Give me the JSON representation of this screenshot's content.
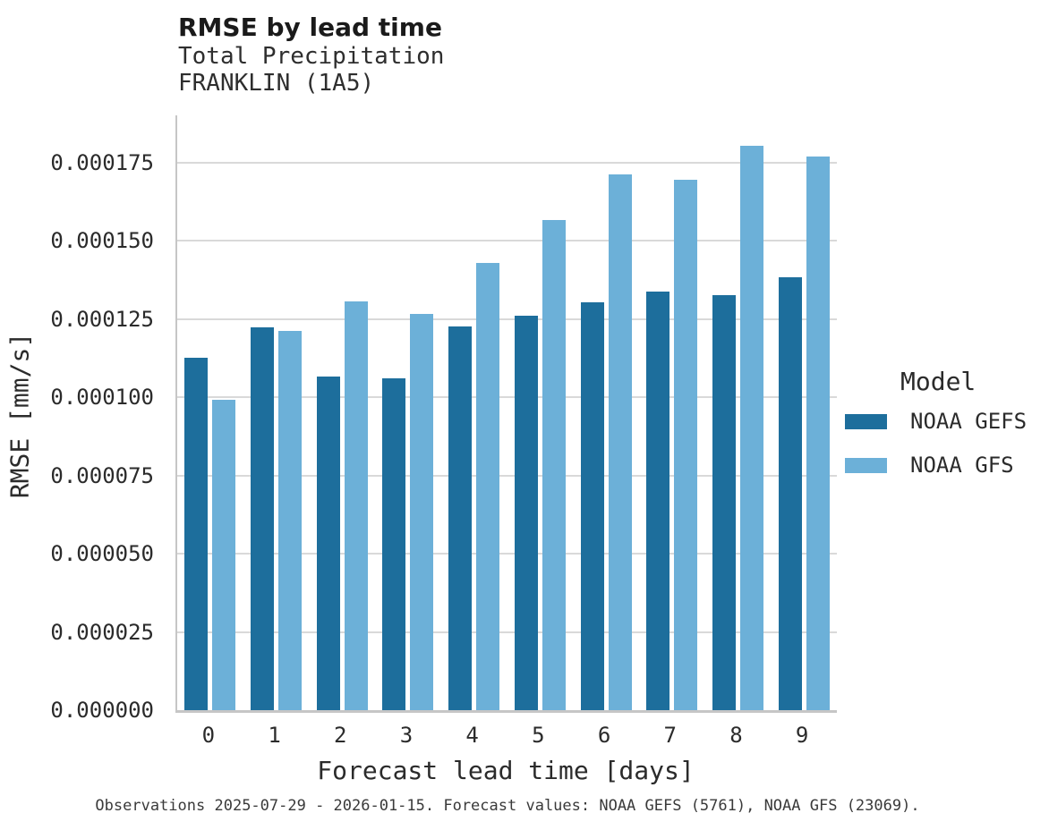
{
  "header": {
    "title": "RMSE by lead time",
    "subtitle_line1": "Total Precipitation",
    "subtitle_line2": "FRANKLIN (1A5)"
  },
  "caption": "Observations 2025-07-29 - 2026-01-15. Forecast values: NOAA GEFS (5761), NOAA GFS (23069).",
  "colors": {
    "series_dark_blue": "#1d6e9c",
    "series_light_blue": "#6cb0d8",
    "gridline": "#d9d9d9",
    "axis_spine": "#c6c6c6"
  },
  "chart_data": {
    "type": "bar",
    "title": "RMSE by lead time",
    "subtitle": [
      "Total Precipitation",
      "FRANKLIN (1A5)"
    ],
    "xlabel": "Forecast lead time [days]",
    "ylabel": "RMSE [mm/s]",
    "categories": [
      "0",
      "1",
      "2",
      "3",
      "4",
      "5",
      "6",
      "7",
      "8",
      "9"
    ],
    "series": [
      {
        "name": "NOAA GEFS",
        "color": "#1d6e9c",
        "values": [
          0.0001125,
          0.0001223,
          0.0001065,
          0.0001059,
          0.0001225,
          0.0001259,
          0.0001304,
          0.0001338,
          0.0001326,
          0.0001382
        ]
      },
      {
        "name": "NOAA GFS",
        "color": "#6cb0d8",
        "values": [
          9.91e-05,
          0.0001211,
          0.0001307,
          0.0001266,
          0.0001429,
          0.0001565,
          0.0001711,
          0.0001694,
          0.0001804,
          0.0001769
        ]
      }
    ],
    "ylim": [
      0,
      0.00019
    ],
    "yticks": [
      {
        "value": 0.0,
        "label": "0.000000"
      },
      {
        "value": 2.5e-05,
        "label": "0.000025"
      },
      {
        "value": 5e-05,
        "label": "0.000050"
      },
      {
        "value": 7.5e-05,
        "label": "0.000075"
      },
      {
        "value": 0.0001,
        "label": "0.000100"
      },
      {
        "value": 0.000125,
        "label": "0.000125"
      },
      {
        "value": 0.00015,
        "label": "0.000150"
      },
      {
        "value": 0.000175,
        "label": "0.000175"
      }
    ],
    "grid": true,
    "legend": {
      "title": "Model",
      "position": "right"
    }
  }
}
